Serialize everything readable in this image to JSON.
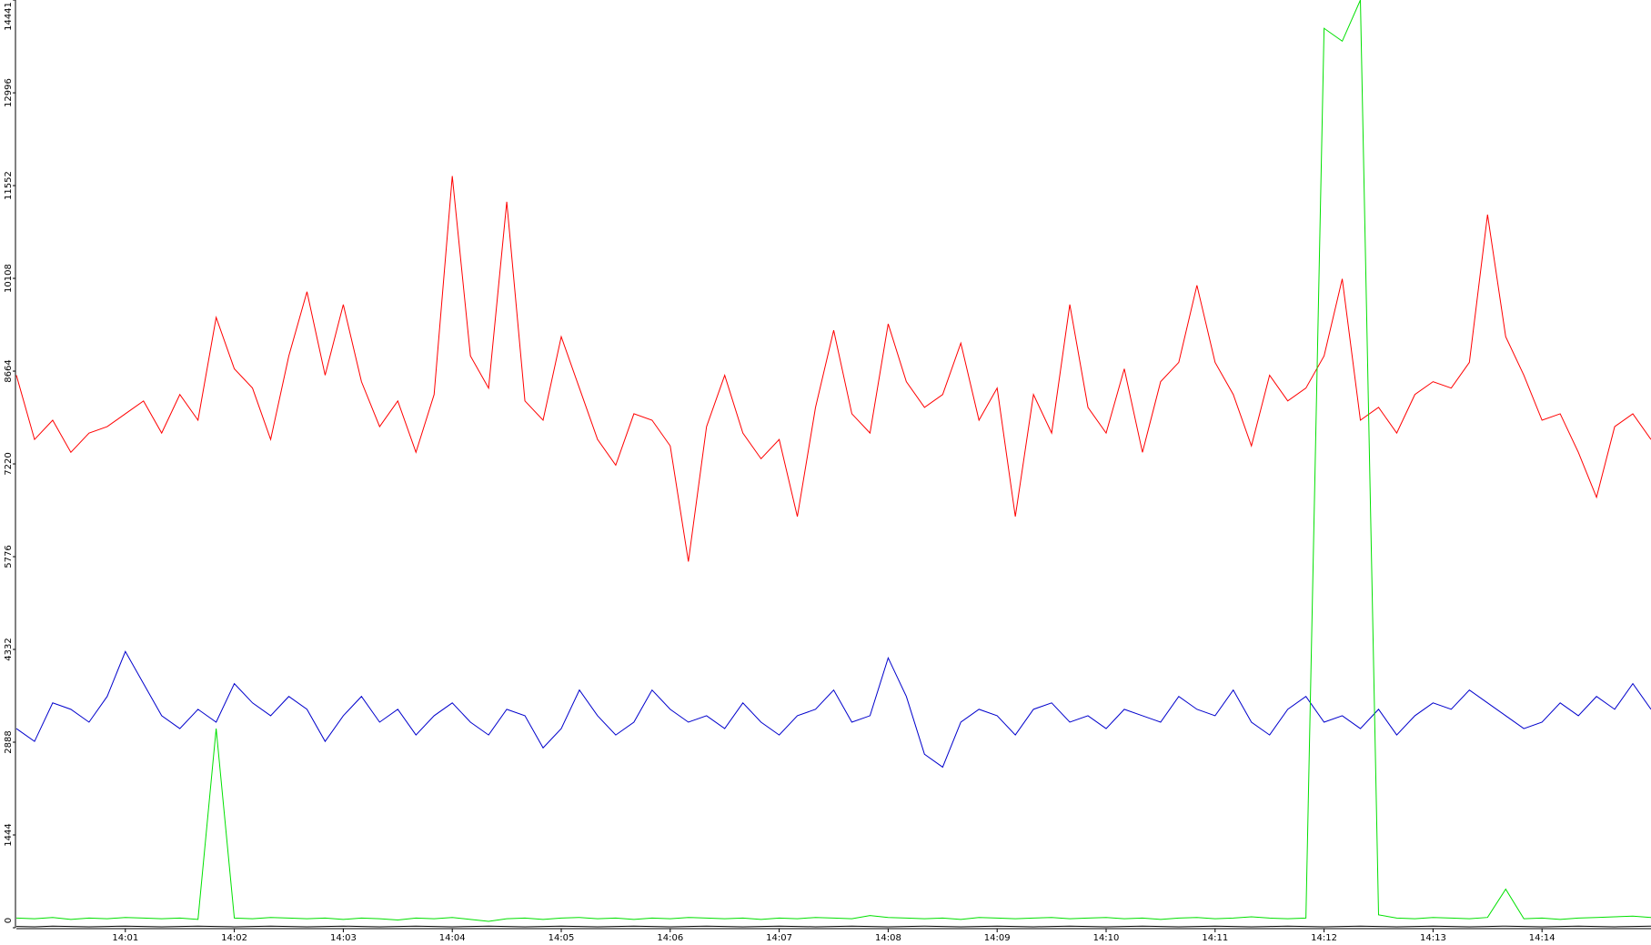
{
  "chart_data": {
    "type": "line",
    "categories": [
      null,
      null,
      null,
      null,
      null,
      null,
      "14:01",
      null,
      null,
      null,
      null,
      null,
      "14:02",
      null,
      null,
      null,
      null,
      null,
      "14:03",
      null,
      null,
      null,
      null,
      null,
      "14:04",
      null,
      null,
      null,
      null,
      null,
      "14:05",
      null,
      null,
      null,
      null,
      null,
      "14:06",
      null,
      null,
      null,
      null,
      null,
      "14:07",
      null,
      null,
      null,
      null,
      null,
      "14:08",
      null,
      null,
      null,
      null,
      null,
      "14:09",
      null,
      null,
      null,
      null,
      null,
      "14:10",
      null,
      null,
      null,
      null,
      null,
      "14:11",
      null,
      null,
      null,
      null,
      null,
      "14:12",
      null,
      null,
      null,
      null,
      null,
      "14:13",
      null,
      null,
      null,
      null,
      null,
      "14:14",
      null,
      null,
      null,
      null,
      null,
      null
    ],
    "series": [
      {
        "name": "red",
        "color": "#ff0000",
        "values": [
          8600,
          7600,
          7900,
          7400,
          7700,
          7800,
          8000,
          8200,
          7700,
          8300,
          7900,
          9500,
          8700,
          8400,
          7600,
          8900,
          9900,
          8600,
          9700,
          8500,
          7800,
          8200,
          7400,
          8300,
          11700,
          8900,
          8400,
          11300,
          8200,
          7900,
          9200,
          8400,
          7600,
          7200,
          8000,
          7900,
          7500,
          5700,
          7800,
          8600,
          7700,
          7300,
          7600,
          6400,
          8100,
          9300,
          8000,
          7700,
          9400,
          8500,
          8100,
          8300,
          9100,
          7900,
          8400,
          6400,
          8300,
          7700,
          9700,
          8100,
          7700,
          8700,
          7400,
          8500,
          8800,
          10000,
          8800,
          8300,
          7500,
          8600,
          8200,
          8400,
          8900,
          10100,
          7900,
          8100,
          7700,
          8300,
          8500,
          8400,
          8800,
          11100,
          9200,
          8600,
          7900,
          8000,
          7400,
          6700,
          7800,
          8000,
          7600
        ]
      },
      {
        "name": "blue",
        "color": "#0000cc",
        "values": [
          3100,
          2900,
          3500,
          3400,
          3200,
          3600,
          4300,
          3800,
          3300,
          3100,
          3400,
          3200,
          3800,
          3500,
          3300,
          3600,
          3400,
          2900,
          3300,
          3600,
          3200,
          3400,
          3000,
          3300,
          3500,
          3200,
          3000,
          3400,
          3300,
          2800,
          3100,
          3700,
          3300,
          3000,
          3200,
          3700,
          3400,
          3200,
          3300,
          3100,
          3500,
          3200,
          3000,
          3300,
          3400,
          3700,
          3200,
          3300,
          4200,
          3600,
          2700,
          2500,
          3200,
          3400,
          3300,
          3000,
          3400,
          3500,
          3200,
          3300,
          3100,
          3400,
          3300,
          3200,
          3600,
          3400,
          3300,
          3700,
          3200,
          3000,
          3400,
          3600,
          3200,
          3300,
          3100,
          3400,
          3000,
          3300,
          3500,
          3400,
          3700,
          3500,
          3300,
          3100,
          3200,
          3500,
          3300,
          3600,
          3400,
          3800,
          3400
        ]
      },
      {
        "name": "green",
        "color": "#00e000",
        "values": [
          150,
          140,
          160,
          130,
          150,
          140,
          160,
          150,
          140,
          150,
          130,
          3100,
          150,
          140,
          160,
          150,
          140,
          150,
          130,
          150,
          140,
          120,
          150,
          140,
          160,
          130,
          100,
          140,
          150,
          130,
          150,
          160,
          140,
          150,
          130,
          150,
          140,
          160,
          150,
          140,
          150,
          130,
          150,
          140,
          160,
          150,
          140,
          190,
          160,
          150,
          140,
          150,
          130,
          160,
          150,
          140,
          150,
          160,
          140,
          150,
          160,
          140,
          150,
          130,
          150,
          160,
          140,
          150,
          170,
          150,
          140,
          150,
          14000,
          13800,
          14441,
          200,
          150,
          140,
          160,
          150,
          140,
          160,
          600,
          140,
          150,
          130,
          150,
          160,
          170,
          180,
          160
        ]
      },
      {
        "name": "black",
        "color": "#000000",
        "values": [
          20,
          15,
          25,
          20,
          15,
          20,
          25,
          20,
          15,
          20,
          25,
          20,
          15,
          20,
          25,
          20,
          15,
          20,
          25,
          20,
          15,
          20,
          25,
          20,
          15,
          20,
          25,
          20,
          15,
          20,
          25,
          20,
          15,
          20,
          25,
          20,
          15,
          20,
          25,
          20,
          15,
          20,
          25,
          20,
          15,
          20,
          25,
          20,
          15,
          20,
          25,
          20,
          15,
          20,
          25,
          20,
          15,
          20,
          25,
          20,
          15,
          20,
          25,
          20,
          15,
          20,
          25,
          20,
          15,
          20,
          25,
          20,
          15,
          20,
          25,
          20,
          15,
          20,
          25,
          20,
          15,
          20,
          25,
          20,
          15,
          20,
          25,
          20,
          15,
          20,
          25
        ]
      }
    ],
    "ylim": [
      0,
      14441
    ],
    "yticks": [
      0,
      1444,
      2888,
      4332,
      5776,
      7220,
      8664,
      10108,
      11552,
      12996,
      14441
    ],
    "grid": false
  }
}
